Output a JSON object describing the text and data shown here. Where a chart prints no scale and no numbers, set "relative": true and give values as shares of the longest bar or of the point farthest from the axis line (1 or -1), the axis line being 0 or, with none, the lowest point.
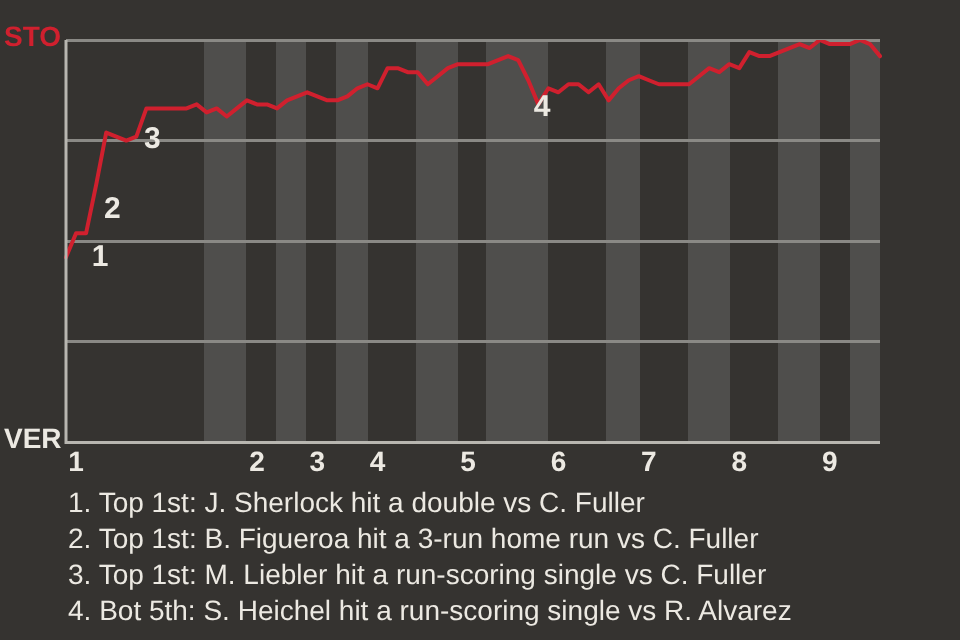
{
  "chart_data": {
    "type": "line",
    "relative": true,
    "categories": [
      null,
      "1",
      null,
      null,
      null,
      null,
      null,
      null,
      null,
      null,
      null,
      null,
      null,
      null,
      null,
      null,
      null,
      null,
      null,
      "2",
      null,
      null,
      null,
      null,
      null,
      "3",
      null,
      null,
      null,
      null,
      null,
      "4",
      null,
      null,
      null,
      null,
      null,
      null,
      null,
      null,
      "5",
      null,
      null,
      null,
      null,
      null,
      null,
      null,
      null,
      "6",
      null,
      null,
      null,
      null,
      null,
      null,
      null,
      null,
      "7",
      null,
      null,
      null,
      null,
      null,
      null,
      null,
      null,
      "8",
      null,
      null,
      null,
      null,
      null,
      null,
      null,
      null,
      "9",
      null,
      null,
      null,
      null,
      null
    ],
    "series": [
      {
        "color": "#d0202e",
        "values": [
          0.46,
          0.52,
          0.52,
          0.64,
          0.77,
          0.76,
          0.75,
          0.76,
          0.83,
          0.83,
          0.83,
          0.83,
          0.83,
          0.84,
          0.82,
          0.83,
          0.81,
          0.83,
          0.85,
          0.84,
          0.84,
          0.83,
          0.85,
          0.86,
          0.87,
          0.86,
          0.85,
          0.85,
          0.86,
          0.88,
          0.89,
          0.88,
          0.93,
          0.93,
          0.92,
          0.92,
          0.89,
          0.91,
          0.93,
          0.94,
          0.94,
          0.94,
          0.94,
          0.95,
          0.96,
          0.95,
          0.9,
          0.84,
          0.88,
          0.87,
          0.89,
          0.89,
          0.87,
          0.89,
          0.85,
          0.88,
          0.9,
          0.91,
          0.9,
          0.89,
          0.89,
          0.89,
          0.89,
          0.91,
          0.93,
          0.92,
          0.94,
          0.93,
          0.97,
          0.96,
          0.96,
          0.97,
          0.98,
          0.99,
          0.98,
          1,
          0.99,
          0.99,
          0.99,
          1,
          0.99,
          0.96
        ]
      }
    ],
    "grid": "y",
    "legend": false,
    "marker": "none",
    "line_style": "solid",
    "annotations": [
      "STO",
      "VER",
      "1",
      "2",
      "3",
      "4",
      "1. Top 1st: J. Sherlock hit a double vs C. Fuller",
      "2. Top 1st: B. Figueroa hit a 3-run home run vs C. Fuller",
      "3. Top 1st: M. Liebler hit a run-scoring single vs C. Fuller",
      "4. Bot 5th: S. Heichel hit a run-scoring single vs R. Alvarez"
    ]
  }
}
